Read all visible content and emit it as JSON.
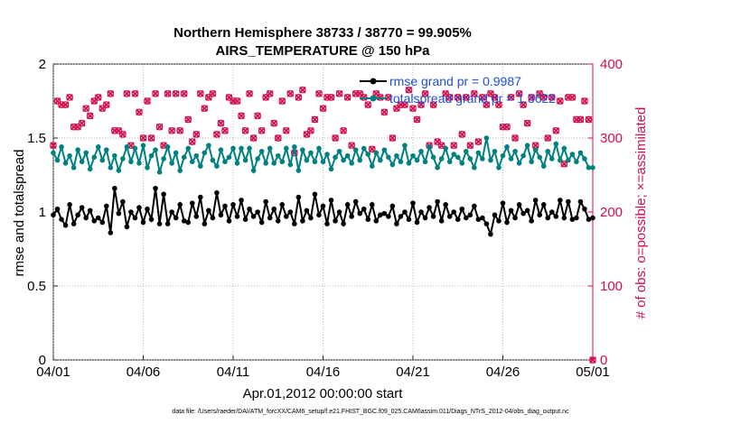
{
  "chart_data": {
    "type": "line",
    "title_line1": "Northern Hemisphere 38733 / 38770 = 99.905%",
    "title_line2": "AIRS_TEMPERATURE @ 150 hPa",
    "xlabel": "Apr.01,2012 00:00:00 start",
    "ylabel": "rmse and totalspread",
    "ylabel_right": "# of obs: o=possible; ×=assimilated",
    "ylim": [
      0,
      2
    ],
    "ylim_right": [
      0,
      400
    ],
    "xlim": [
      0,
      30
    ],
    "x_ticks": [
      0,
      5,
      10,
      15,
      20,
      25,
      30
    ],
    "x_tick_labels": [
      "04/01",
      "04/06",
      "04/11",
      "04/16",
      "04/21",
      "04/26",
      "05/01"
    ],
    "y_ticks": [
      0,
      0.5,
      1,
      1.5,
      2
    ],
    "y_tick_labels": [
      "0",
      "0.5",
      "1",
      "1.5",
      "2"
    ],
    "y_right_ticks": [
      0,
      100,
      200,
      300,
      400
    ],
    "y_right_tick_labels": [
      "0",
      "100",
      "200",
      "300",
      "400"
    ],
    "footer": "data file: /Users/raeder/DAI/ATM_forcXX/CAM6_setup/f.e21.FHIST_BGC.f09_025.CAM6assim.011/Diags_NTrS_2012-04/obs_diag_output.nc",
    "colors": {
      "rmse": "#000000",
      "spread": "#008080",
      "obs": "#d0104c",
      "legend_text": "#1f4fdd"
    },
    "series": [
      {
        "name": "rmse grand pr = 0.9987",
        "axis": "left",
        "color": "#000000",
        "marker": "filled-circle",
        "values": [
          0.98,
          1.02,
          0.95,
          0.91,
          1.05,
          0.92,
          0.98,
          1.03,
          0.96,
          1.01,
          0.94,
          0.96,
          0.93,
          1.04,
          0.86,
          1.16,
          0.99,
          1.07,
          0.9,
          1.0,
          0.96,
          1.03,
          0.93,
          1.02,
          0.95,
          1.16,
          0.92,
          1.12,
          0.92,
          1.0,
          0.96,
          1.05,
          0.94,
          0.93,
          1.06,
          0.97,
          1.1,
          0.92,
          1.01,
          0.96,
          1.13,
          0.98,
          1.04,
          0.94,
          1.05,
          0.97,
          1.08,
          0.95,
          1.02,
          0.97,
          1.0,
          0.93,
          1.07,
          0.96,
          1.02,
          0.94,
          1.05,
          0.97,
          1.0,
          0.92,
          1.1,
          0.94,
          1.01,
          0.96,
          1.12,
          0.98,
          1.04,
          0.92,
          1.08,
          0.94,
          1.0,
          0.92,
          1.05,
          0.97,
          1.07,
          0.99,
          1.02,
          0.95,
          1.05,
          0.94,
          0.98,
          0.99,
          0.97,
          1.04,
          0.92,
          0.97,
          1.0,
          0.95,
          1.06,
          0.93,
          1.0,
          0.96,
          1.03,
          0.97,
          1.07,
          0.94,
          1.05,
          0.97,
          1.0,
          0.95,
          1.02,
          0.96,
          0.98,
          1.04,
          0.95,
          0.96,
          0.92,
          0.85,
          0.98,
          0.94,
          1.06,
          0.93,
          1.01,
          0.96,
          1.05,
          0.99,
          1.01,
          0.94,
          1.08,
          0.98,
          1.05,
          0.96,
          1.0,
          0.97,
          1.08,
          0.96,
          1.07,
          0.95,
          0.96,
          1.07,
          1.02,
          0.95,
          0.96
        ]
      },
      {
        "name": "totalspread grand pr = 1.3622",
        "axis": "left",
        "color": "#008080",
        "marker": "filled-circle",
        "values": [
          1.4,
          1.35,
          1.44,
          1.33,
          1.38,
          1.3,
          1.42,
          1.34,
          1.4,
          1.29,
          1.37,
          1.44,
          1.35,
          1.42,
          1.3,
          1.38,
          1.28,
          1.36,
          1.44,
          1.34,
          1.43,
          1.33,
          1.45,
          1.3,
          1.38,
          1.42,
          1.27,
          1.36,
          1.44,
          1.33,
          1.4,
          1.28,
          1.37,
          1.43,
          1.34,
          1.38,
          1.31,
          1.4,
          1.45,
          1.35,
          1.31,
          1.42,
          1.34,
          1.37,
          1.43,
          1.33,
          1.43,
          1.35,
          1.43,
          1.28,
          1.36,
          1.41,
          1.33,
          1.43,
          1.33,
          1.38,
          1.34,
          1.43,
          1.32,
          1.44,
          1.28,
          1.42,
          1.35,
          1.4,
          1.34,
          1.43,
          1.34,
          1.39,
          1.29,
          1.37,
          1.41,
          1.35,
          1.38,
          1.33,
          1.42,
          1.35,
          1.43,
          1.39,
          1.31,
          1.4,
          1.35,
          1.42,
          1.37,
          1.32,
          1.38,
          1.34,
          1.45,
          1.33,
          1.38,
          1.35,
          1.41,
          1.34,
          1.44,
          1.37,
          1.3,
          1.36,
          1.43,
          1.34,
          1.39,
          1.37,
          1.33,
          1.41,
          1.36,
          1.3,
          1.4,
          1.36,
          1.5,
          1.35,
          1.41,
          1.3,
          1.38,
          1.44,
          1.36,
          1.41,
          1.33,
          1.38,
          1.45,
          1.34,
          1.42,
          1.37,
          1.31,
          1.41,
          1.36,
          1.46,
          1.35,
          1.43,
          1.35,
          1.39,
          1.34,
          1.4,
          1.36,
          1.3,
          1.3
        ]
      },
      {
        "name": "observations possible",
        "axis": "right",
        "color": "#d0104c",
        "marker": "open-circle",
        "values": [
          290,
          350,
          345,
          345,
          355,
          315,
          315,
          320,
          340,
          330,
          350,
          355,
          340,
          345,
          360,
          310,
          310,
          305,
          360,
          290,
          360,
          335,
          300,
          350,
          300,
          360,
          315,
          290,
          360,
          310,
          360,
          310,
          360,
          325,
          295,
          305,
          360,
          340,
          355,
          360,
          305,
          320,
          310,
          355,
          350,
          350,
          330,
          310,
          360,
          300,
          330,
          310,
          355,
          360,
          320,
          300,
          350,
          310,
          360,
          280,
          355,
          365,
          305,
          310,
          325,
          360,
          340,
          355,
          355,
          300,
          360,
          310,
          355,
          290,
          360,
          360,
          355,
          345,
          285,
          360,
          355,
          335,
          355,
          300,
          340,
          345,
          345,
          365,
          340,
          325,
          345,
          360,
          290,
          345,
          295,
          290,
          360,
          355,
          290,
          355,
          305,
          355,
          290,
          360,
          295,
          355,
          345,
          360,
          355,
          345,
          315,
          315,
          355,
          300,
          360,
          345,
          320,
          355,
          290,
          360,
          355,
          300,
          355,
          310,
          350,
          265,
          355,
          355,
          325,
          325,
          350,
          325,
          0
        ]
      },
      {
        "name": "observations assimilated",
        "axis": "right",
        "color": "#d0104c",
        "marker": "cross",
        "values": [
          290,
          350,
          345,
          345,
          355,
          315,
          315,
          320,
          340,
          330,
          350,
          355,
          340,
          345,
          360,
          310,
          310,
          305,
          360,
          290,
          360,
          335,
          300,
          350,
          300,
          360,
          315,
          290,
          360,
          310,
          360,
          310,
          360,
          325,
          295,
          305,
          360,
          340,
          355,
          360,
          305,
          320,
          310,
          355,
          350,
          350,
          330,
          310,
          360,
          300,
          330,
          310,
          355,
          360,
          320,
          300,
          350,
          310,
          360,
          280,
          355,
          365,
          305,
          310,
          325,
          360,
          340,
          355,
          355,
          300,
          360,
          310,
          355,
          290,
          360,
          360,
          355,
          345,
          285,
          360,
          355,
          335,
          355,
          300,
          340,
          345,
          345,
          365,
          340,
          325,
          345,
          360,
          290,
          345,
          295,
          290,
          360,
          355,
          290,
          355,
          305,
          355,
          290,
          360,
          295,
          355,
          345,
          360,
          355,
          345,
          315,
          315,
          355,
          300,
          360,
          345,
          320,
          355,
          290,
          360,
          355,
          300,
          355,
          310,
          350,
          265,
          355,
          355,
          325,
          325,
          350,
          325,
          0
        ]
      }
    ]
  }
}
